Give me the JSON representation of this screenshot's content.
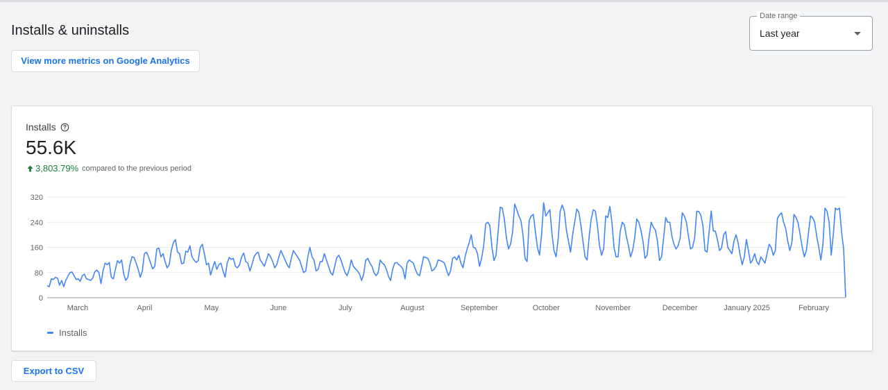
{
  "header": {
    "title": "Installs & uninstalls",
    "ga_button_label": "View more metrics on Google Analytics"
  },
  "date_range": {
    "label": "Date range",
    "value": "Last year"
  },
  "card": {
    "metric_title": "Installs",
    "metric_value": "55.6K",
    "change_pct": "3,803.79%",
    "change_text": "compared to the previous period",
    "legend_label": "Installs"
  },
  "footer": {
    "export_label": "Export to CSV"
  },
  "colors": {
    "line": "#4285f4",
    "accent": "#1a73e8",
    "positive": "#188038"
  },
  "chart_data": {
    "type": "line",
    "ylim": [
      0,
      320
    ],
    "y_ticks": [
      "0",
      "80",
      "160",
      "240",
      "320"
    ],
    "x_ticks": [
      "March",
      "April",
      "May",
      "June",
      "July",
      "August",
      "September",
      "October",
      "November",
      "December",
      "January 2025",
      "February"
    ],
    "grid": true,
    "legend_position": "bottom-left",
    "series": [
      {
        "name": "Installs",
        "values": [
          38,
          35,
          60,
          58,
          65,
          62,
          40,
          55,
          35,
          55,
          68,
          80,
          82,
          70,
          58,
          60,
          52,
          70,
          75,
          60,
          58,
          55,
          62,
          82,
          88,
          80,
          45,
          85,
          110,
          105,
          112,
          65,
          60,
          90,
          118,
          110,
          120,
          75,
          55,
          65,
          105,
          130,
          128,
          110,
          90,
          65,
          85,
          140,
          145,
          130,
          110,
          92,
          100,
          155,
          158,
          130,
          140,
          115,
          95,
          105,
          150,
          175,
          185,
          145,
          140,
          108,
          110,
          148,
          145,
          165,
          130,
          120,
          112,
          118,
          160,
          170,
          140,
          105,
          110,
          72,
          95,
          115,
          90,
          105,
          110,
          85,
          65,
          110,
          128,
          122,
          125,
          100,
          95,
          105,
          130,
          142,
          115,
          110,
          85,
          105,
          130,
          140,
          145,
          120,
          110,
          100,
          120,
          140,
          130,
          115,
          95,
          105,
          130,
          150,
          135,
          120,
          105,
          95,
          125,
          150,
          140,
          130,
          120,
          100,
          80,
          85,
          130,
          160,
          130,
          120,
          85,
          90,
          115,
          115,
          140,
          120,
          100,
          80,
          72,
          100,
          128,
          135,
          120,
          100,
          80,
          70,
          90,
          120,
          100,
          92,
          85,
          75,
          55,
          75,
          120,
          125,
          110,
          100,
          80,
          70,
          80,
          120,
          110,
          105,
          90,
          68,
          55,
          90,
          110,
          112,
          105,
          100,
          90,
          60,
          110,
          120,
          115,
          110,
          90,
          75,
          70,
          100,
          130,
          128,
          125,
          110,
          85,
          90,
          100,
          120,
          118,
          115,
          110,
          90,
          70,
          85,
          125,
          130,
          120,
          135,
          110,
          95,
          130,
          155,
          175,
          200,
          160,
          158,
          140,
          100,
          125,
          165,
          235,
          240,
          230,
          160,
          118,
          135,
          210,
          288,
          285,
          250,
          190,
          155,
          170,
          210,
          298,
          280,
          260,
          245,
          200,
          125,
          115,
          245,
          260,
          265,
          210,
          160,
          135,
          200,
          302,
          260,
          270,
          280,
          205,
          150,
          130,
          185,
          275,
          295,
          275,
          215,
          180,
          145,
          200,
          240,
          282,
          272,
          230,
          180,
          130,
          120,
          195,
          250,
          280,
          275,
          230,
          165,
          135,
          155,
          260,
          255,
          290,
          240,
          160,
          130,
          130,
          210,
          240,
          232,
          195,
          165,
          130,
          150,
          190,
          250,
          240,
          215,
          180,
          125,
          135,
          195,
          240,
          225,
          215,
          180,
          118,
          130,
          190,
          255,
          240,
          240,
          195,
          170,
          155,
          165,
          190,
          270,
          260,
          240,
          195,
          155,
          160,
          190,
          275,
          274,
          262,
          228,
          150,
          145,
          210,
          276,
          212,
          212,
          185,
          150,
          158,
          200,
          210,
          160,
          150,
          140,
          180,
          200,
          175,
          135,
          105,
          130,
          185,
          150,
          110,
          120,
          140,
          115,
          105,
          130,
          120,
          110,
          140,
          170,
          160,
          135,
          150,
          252,
          263,
          270,
          240,
          220,
          180,
          150,
          175,
          265,
          255,
          238,
          200,
          160,
          130,
          150,
          205,
          260,
          255,
          240,
          195,
          160,
          120,
          170,
          285,
          275,
          240,
          135,
          200,
          285,
          280,
          285,
          210,
          155,
          1
        ]
      }
    ]
  }
}
